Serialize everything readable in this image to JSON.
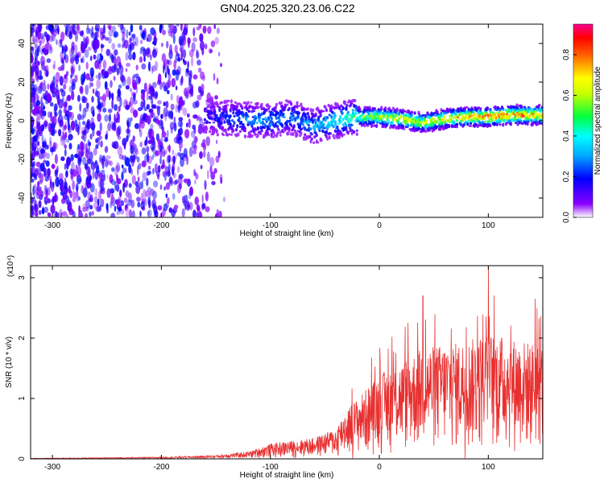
{
  "title": "GN04.2025.320.23.06.C22",
  "colors": {
    "snr_line": "#e83030",
    "axis": "#000000",
    "background": "#ffffff"
  },
  "chart_data": [
    {
      "type": "heatmap",
      "title": "GN04.2025.320.23.06.C22",
      "xlabel": "Height of straight line (km)",
      "ylabel": "Frequency (Hz)",
      "xlim": [
        -320,
        150
      ],
      "ylim": [
        -50,
        50
      ],
      "x_ticks": [
        -300,
        -200,
        -100,
        0,
        100
      ],
      "y_ticks": [
        -40,
        -20,
        0,
        20,
        40
      ],
      "colorbar": {
        "label": "Normalized spectral amplitude",
        "range": [
          0,
          0.95
        ],
        "ticks": [
          0.0,
          0.2,
          0.4,
          0.6,
          0.8
        ],
        "tick_labels": [
          "0.0",
          "0.2",
          "0.4",
          "0.6",
          "0.8"
        ],
        "colormap": "rainbow (purple to red)"
      },
      "features": {
        "noise_region_x": [
          -320,
          -150
        ],
        "ridge_center_frequency_hz": 2,
        "ridge": [
          {
            "x": -155,
            "f": 2,
            "amp": 0.2
          },
          {
            "x": -130,
            "f": 1,
            "amp": 0.3
          },
          {
            "x": -100,
            "f": 0,
            "amp": 0.35
          },
          {
            "x": -80,
            "f": 2,
            "amp": 0.3
          },
          {
            "x": -60,
            "f": -3,
            "amp": 0.35
          },
          {
            "x": -40,
            "f": 0,
            "amp": 0.45
          },
          {
            "x": -20,
            "f": 2,
            "amp": 0.55
          },
          {
            "x": 0,
            "f": 2,
            "amp": 0.7
          },
          {
            "x": 20,
            "f": 1,
            "amp": 0.75
          },
          {
            "x": 40,
            "f": -1,
            "amp": 0.7
          },
          {
            "x": 60,
            "f": 1,
            "amp": 0.8
          },
          {
            "x": 80,
            "f": 2,
            "amp": 0.85
          },
          {
            "x": 100,
            "f": 2,
            "amp": 0.9
          },
          {
            "x": 120,
            "f": 3,
            "amp": 0.9
          },
          {
            "x": 150,
            "f": 3,
            "amp": 0.85
          }
        ]
      }
    },
    {
      "type": "line",
      "xlabel": "Height of straight line (km)",
      "ylabel": "SNR (10 * v/v)",
      "y_multiplier_label": "(x10⁴)",
      "xlim": [
        -320,
        150
      ],
      "ylim": [
        0,
        3.2
      ],
      "x_ticks": [
        -300,
        -200,
        -100,
        0,
        100
      ],
      "y_ticks": [
        0,
        1,
        2,
        3
      ],
      "series": [
        {
          "color": "#e83030",
          "envelope": [
            {
              "x": -320,
              "y": 0.01
            },
            {
              "x": -200,
              "y": 0.03
            },
            {
              "x": -150,
              "y": 0.06
            },
            {
              "x": -120,
              "y": 0.12
            },
            {
              "x": -100,
              "y": 0.25
            },
            {
              "x": -80,
              "y": 0.3
            },
            {
              "x": -60,
              "y": 0.35
            },
            {
              "x": -40,
              "y": 0.5
            },
            {
              "x": -30,
              "y": 0.85
            },
            {
              "x": -20,
              "y": 1.0
            },
            {
              "x": 0,
              "y": 1.4
            },
            {
              "x": 20,
              "y": 1.6
            },
            {
              "x": 40,
              "y": 1.85
            },
            {
              "x": 60,
              "y": 1.9
            },
            {
              "x": 80,
              "y": 1.95
            },
            {
              "x": 100,
              "y": 2.1
            },
            {
              "x": 120,
              "y": 2.0
            },
            {
              "x": 150,
              "y": 1.9
            }
          ],
          "peaks": [
            {
              "x": 40,
              "y": 2.7
            },
            {
              "x": 100,
              "y": 3.18
            },
            {
              "x": 143,
              "y": 2.65
            }
          ]
        }
      ]
    }
  ]
}
